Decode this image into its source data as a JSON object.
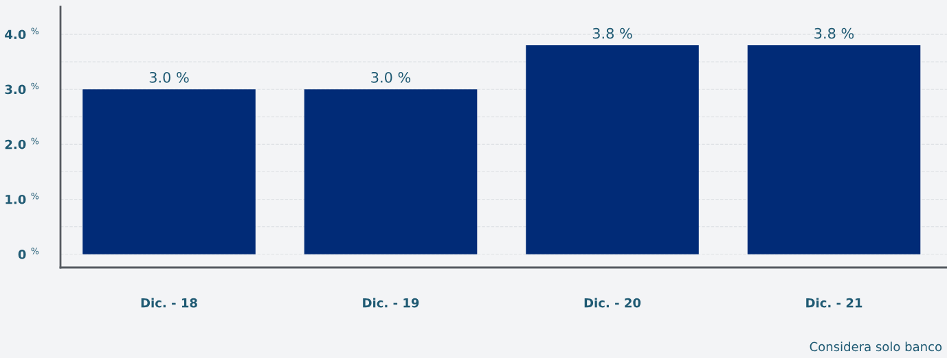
{
  "chart_data": {
    "type": "bar",
    "categories": [
      "Dic. - 18",
      "Dic. - 19",
      "Dic. - 20",
      "Dic. - 21"
    ],
    "values": [
      3.0,
      3.0,
      3.8,
      3.8
    ],
    "value_labels": [
      "3.0 %",
      "3.0 %",
      "3.8 %",
      "3.8 %"
    ],
    "color": "#012b77",
    "ylim": [
      -0.24,
      4.5
    ],
    "yticks": [
      {
        "value": 0,
        "label": "0 $^{%}$"
      },
      {
        "value": 0.5,
        "label": null
      },
      {
        "value": 1,
        "label": "1.0 $^{%}$"
      },
      {
        "value": 1.5,
        "label": null
      },
      {
        "value": 2,
        "label": "2.0 $^{%}$"
      },
      {
        "value": 2.5,
        "label": null
      },
      {
        "value": 3,
        "label": "3.0 $^{%}$"
      },
      {
        "value": 3.5,
        "label": null
      },
      {
        "value": 4,
        "label": "4.0 $^{%}$"
      }
    ],
    "grid": "y",
    "annotations": [
      "Considera solo banco"
    ]
  }
}
